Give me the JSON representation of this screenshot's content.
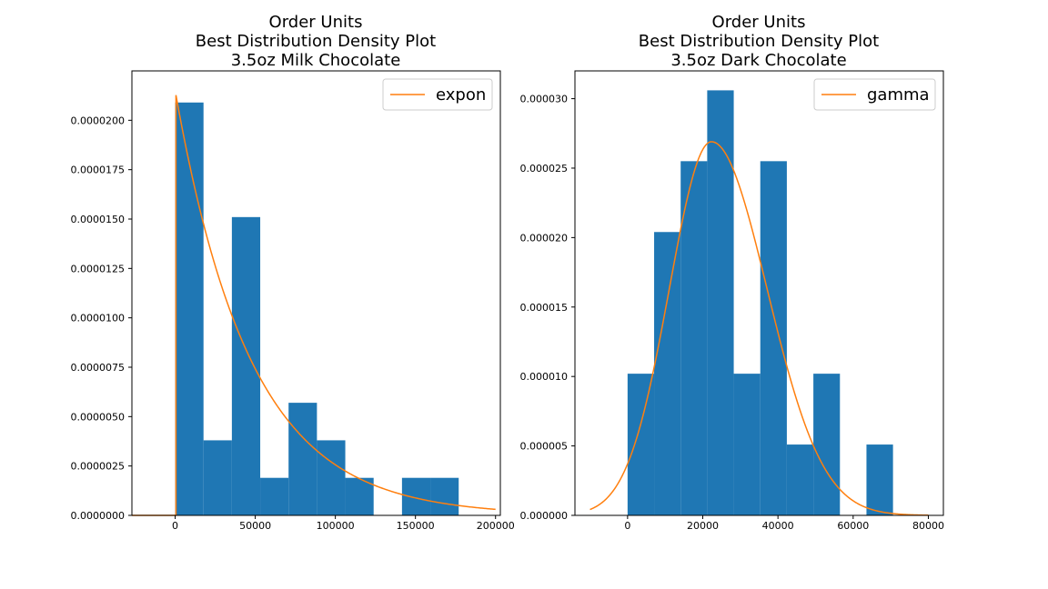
{
  "chart_data": [
    {
      "type": "histogram",
      "title_lines": [
        "Order Units",
        "Best Distribution Density Plot",
        "3.5oz Milk Chocolate"
      ],
      "xlim": [
        -27000,
        203000
      ],
      "ylim": [
        0,
        2.25e-05
      ],
      "xticks": [
        0,
        50000,
        100000,
        150000,
        200000
      ],
      "xtick_labels": [
        "0",
        "50000",
        "100000",
        "150000",
        "200000"
      ],
      "yticks": [
        0,
        2.5e-06,
        5e-06,
        7.5e-06,
        1e-05,
        1.25e-05,
        1.5e-05,
        1.75e-05,
        2e-05
      ],
      "ytick_labels": [
        "0.0000000",
        "0.0000025",
        "0.0000050",
        "0.0000075",
        "0.0000100",
        "0.0000125",
        "0.0000150",
        "0.0000175",
        "0.0000200"
      ],
      "bin_edges": [
        0,
        17700,
        35400,
        53100,
        70800,
        88500,
        106200,
        123900,
        141600,
        159300,
        177000
      ],
      "bin_values": [
        2.09e-05,
        3.8e-06,
        1.51e-05,
        1.9e-06,
        5.7e-06,
        3.8e-06,
        1.9e-06,
        0,
        1.9e-06,
        1.9e-06
      ],
      "bar_color": "#1f77b4",
      "fit": {
        "name": "expon",
        "color": "#ff7f0e",
        "loc": 500,
        "scale": 47000,
        "x_range": [
          -27000,
          200000
        ]
      },
      "legend": {
        "entries": [
          "expon"
        ],
        "placement": "upper right"
      }
    },
    {
      "type": "histogram",
      "title_lines": [
        "Order Units",
        "Best Distribution Density Plot",
        "3.5oz Dark Chocolate"
      ],
      "xlim": [
        -14000,
        84000
      ],
      "ylim": [
        0,
        3.2e-05
      ],
      "xticks": [
        0,
        20000,
        40000,
        60000,
        80000
      ],
      "xtick_labels": [
        "0",
        "20000",
        "40000",
        "60000",
        "80000"
      ],
      "yticks": [
        0,
        5e-06,
        1e-05,
        1.5e-05,
        2e-05,
        2.5e-05,
        3e-05
      ],
      "ytick_labels": [
        "0.000000",
        "0.000005",
        "0.000010",
        "0.000015",
        "0.000020",
        "0.000025",
        "0.000030"
      ],
      "bin_edges": [
        0,
        7060,
        14120,
        21180,
        28240,
        35300,
        42360,
        49420,
        56480,
        63540,
        70600
      ],
      "bin_values": [
        1.02e-05,
        2.04e-05,
        2.55e-05,
        3.06e-05,
        1.02e-05,
        2.55e-05,
        5.1e-06,
        1.02e-05,
        0,
        5.1e-06
      ],
      "bar_color": "#1f77b4",
      "fit": {
        "name": "gamma",
        "color": "#ff7f0e",
        "peak_x": 22300,
        "peak_y": 2.69e-05,
        "left_sigma": 11200,
        "right_sigma": 14800,
        "x_range": [
          -10000,
          80000
        ]
      },
      "legend": {
        "entries": [
          "gamma"
        ],
        "placement": "upper right"
      }
    }
  ]
}
